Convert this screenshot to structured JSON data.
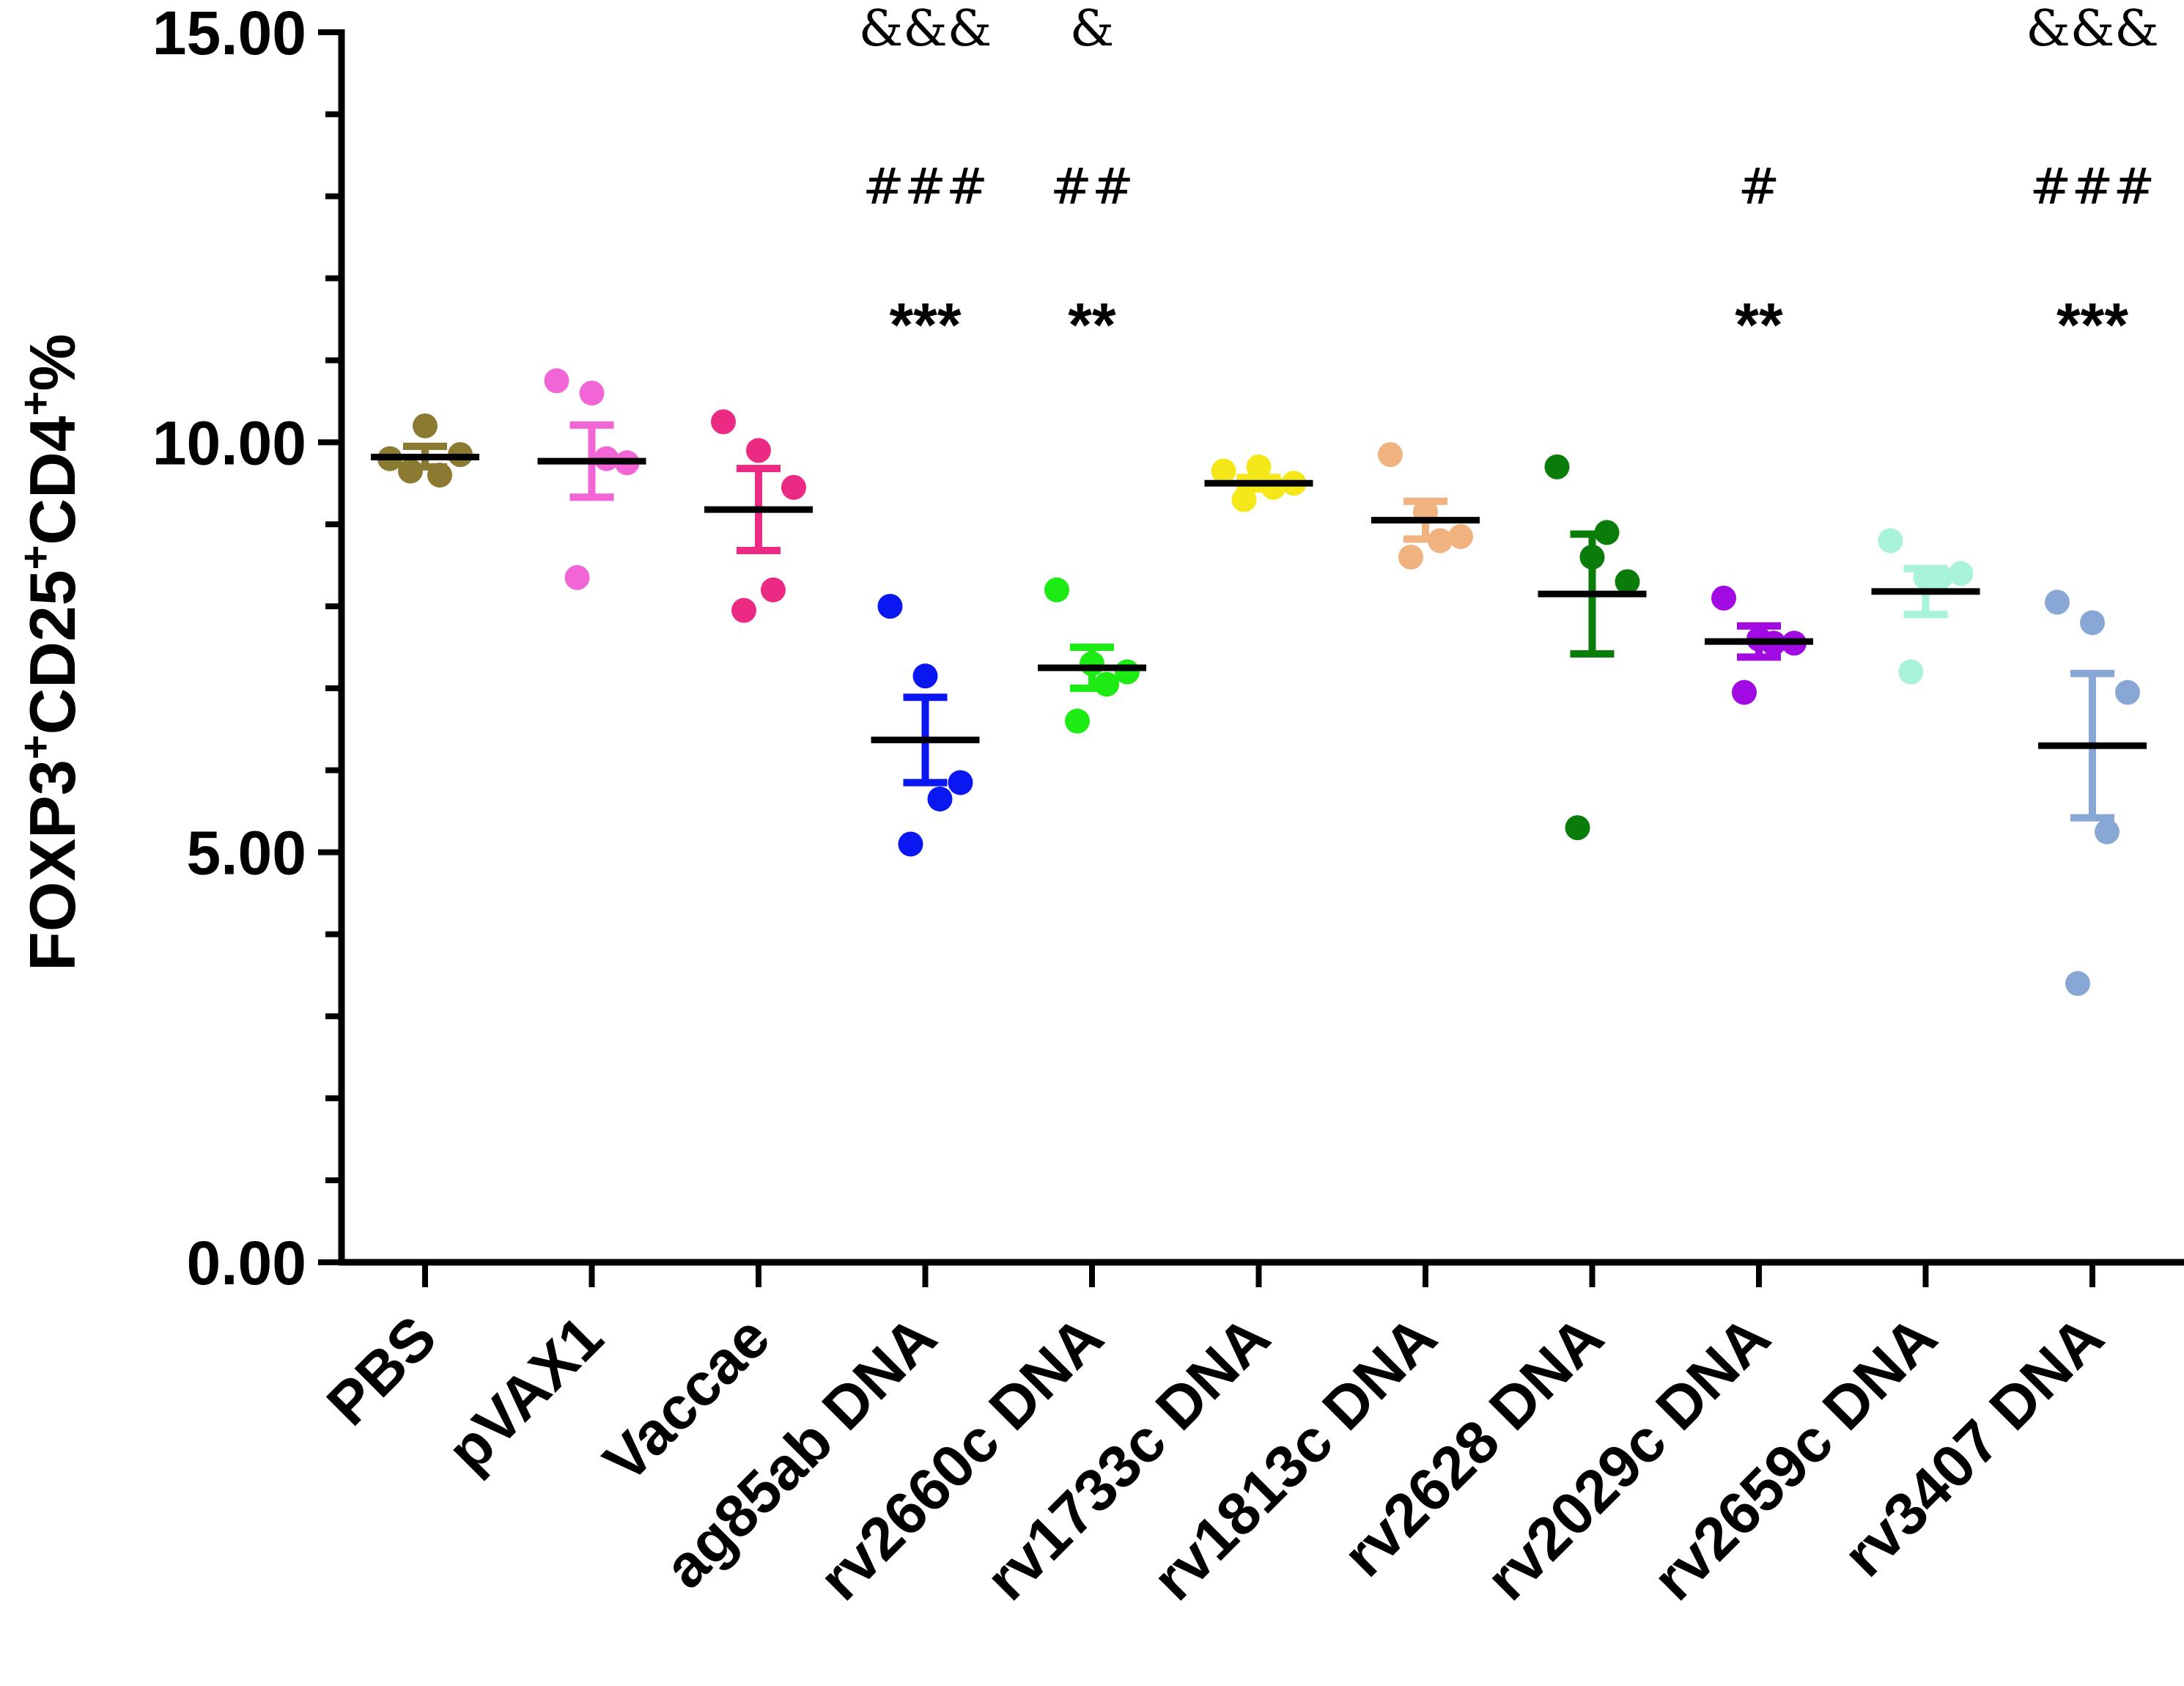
{
  "chart_data": {
    "type": "scatter",
    "ylabel": "FOXP3+CD25+CD4+%",
    "ylabel_parts": [
      {
        "text": "FOXP3",
        "sup": false
      },
      {
        "text": "+",
        "sup": true
      },
      {
        "text": "CD25",
        "sup": false
      },
      {
        "text": "+",
        "sup": true
      },
      {
        "text": "CD4",
        "sup": false
      },
      {
        "text": "+",
        "sup": true
      },
      {
        "text": "%",
        "sup": false
      }
    ],
    "ylim": [
      0,
      15
    ],
    "y_ticks": [
      {
        "value": 0,
        "label": "0.00"
      },
      {
        "value": 5,
        "label": "5.00"
      },
      {
        "value": 10,
        "label": "10.00"
      },
      {
        "value": 15,
        "label": "15.00"
      }
    ],
    "y_minor_step": 1,
    "categories": [
      "PBS",
      "pVAX1",
      "Vaccae",
      "ag85ab DNA",
      "rv2660c DNA",
      "rv1733c DNA",
      "rv1813c DNA",
      "rv2628 DNA",
      "rv2029c DNA",
      "rv2659c DNA",
      "rv3407 DNA"
    ],
    "series": [
      {
        "name": "PBS",
        "color": "#8B7A32",
        "points": [
          9.8,
          10.2,
          9.85,
          9.6,
          9.65
        ],
        "mean": 9.82,
        "sem_low": 9.7,
        "sem_high": 9.95
      },
      {
        "name": "pVAX1",
        "color": "#F265D6",
        "points": [
          10.75,
          10.6,
          9.75,
          9.8,
          8.35
        ],
        "mean": 9.77,
        "sem_low": 9.33,
        "sem_high": 10.21
      },
      {
        "name": "Vaccae",
        "color": "#EB2A83",
        "points": [
          10.25,
          9.9,
          9.45,
          8.2,
          7.95
        ],
        "mean": 9.18,
        "sem_low": 8.68,
        "sem_high": 9.68
      },
      {
        "name": "ag85ab DNA",
        "color": "#0A17F0",
        "points": [
          8.0,
          7.15,
          5.85,
          5.65,
          5.1
        ],
        "mean": 6.37,
        "sem_low": 5.85,
        "sem_high": 6.89
      },
      {
        "name": "rv2660c DNA",
        "color": "#1CEB14",
        "points": [
          8.2,
          7.3,
          7.2,
          7.05,
          6.6
        ],
        "mean": 7.25,
        "sem_low": 7.0,
        "sem_high": 7.5
      },
      {
        "name": "rv1733c DNA",
        "color": "#F4E81A",
        "points": [
          9.65,
          9.7,
          9.5,
          9.45,
          9.3
        ],
        "mean": 9.5,
        "sem_low": 9.43,
        "sem_high": 9.57
      },
      {
        "name": "rv1813c DNA",
        "color": "#F0B27E",
        "points": [
          9.85,
          9.15,
          8.85,
          8.8,
          8.6
        ],
        "mean": 9.05,
        "sem_low": 8.82,
        "sem_high": 9.28
      },
      {
        "name": "rv2628 DNA",
        "color": "#0A7C0A",
        "points": [
          9.7,
          8.6,
          8.3,
          8.9,
          5.3
        ],
        "mean": 8.15,
        "sem_low": 7.42,
        "sem_high": 8.88
      },
      {
        "name": "rv2029c DNA",
        "color": "#A20AE2",
        "points": [
          8.1,
          7.6,
          7.55,
          7.55,
          6.95
        ],
        "mean": 7.57,
        "sem_low": 7.38,
        "sem_high": 7.76
      },
      {
        "name": "rv2659c DNA",
        "color": "#A9F3DB",
        "points": [
          8.8,
          8.35,
          8.4,
          8.35,
          7.2
        ],
        "mean": 8.18,
        "sem_low": 7.9,
        "sem_high": 8.46
      },
      {
        "name": "rv3407 DNA",
        "color": "#89A7D4",
        "points": [
          8.05,
          7.8,
          6.95,
          5.25,
          3.4
        ],
        "mean": 6.3,
        "sem_low": 5.42,
        "sem_high": 7.18
      }
    ],
    "annotations": [
      {
        "category": "ag85ab DNA",
        "amp": "&&&",
        "hash": "###",
        "star": "***"
      },
      {
        "category": "rv2660c DNA",
        "amp": "&",
        "hash": "##",
        "star": "**"
      },
      {
        "category": "rv2029c DNA",
        "amp": "",
        "hash": "#",
        "star": "**"
      },
      {
        "category": "rv3407 DNA",
        "amp": "&&&",
        "hash": "###",
        "star": "***"
      }
    ]
  }
}
